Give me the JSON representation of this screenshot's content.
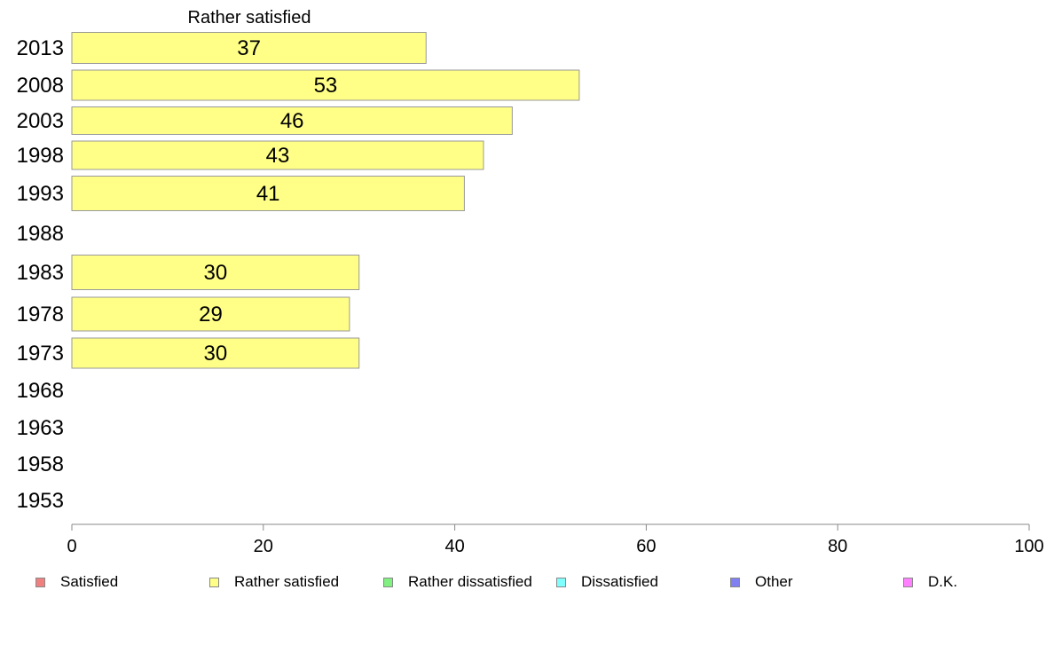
{
  "chart_data": {
    "type": "bar",
    "orientation": "horizontal",
    "title": "Rather satisfied",
    "xlabel": "",
    "ylabel": "",
    "xlim": [
      0,
      100
    ],
    "x_ticks": [
      "0",
      "20",
      "40",
      "60",
      "80",
      "100"
    ],
    "grid": false,
    "legend_placement": "bottom",
    "categories": [
      "2013",
      "2008",
      "2003",
      "1998",
      "1993",
      "1988",
      "1983",
      "1978",
      "1973",
      "1968",
      "1963",
      "1958",
      "1953"
    ],
    "series": [
      {
        "name": "Rather satisfied",
        "color": "#ffff88",
        "values": [
          37,
          53,
          46,
          43,
          41,
          null,
          30,
          29,
          30,
          null,
          null,
          null,
          null
        ]
      }
    ],
    "data_labels": [
      "37",
      "53",
      "46",
      "43",
      "41",
      "",
      "30",
      "29",
      "30",
      "",
      "",
      "",
      ""
    ]
  },
  "legend": {
    "items": [
      {
        "label": "Satisfied",
        "color": "#f08080"
      },
      {
        "label": "Rather satisfied",
        "color": "#ffff88"
      },
      {
        "label": "Rather dissatisfied",
        "color": "#80f080"
      },
      {
        "label": "Dissatisfied",
        "color": "#80ffff"
      },
      {
        "label": "Other",
        "color": "#8080f0"
      },
      {
        "label": "D.K.",
        "color": "#ff80ff"
      }
    ]
  }
}
